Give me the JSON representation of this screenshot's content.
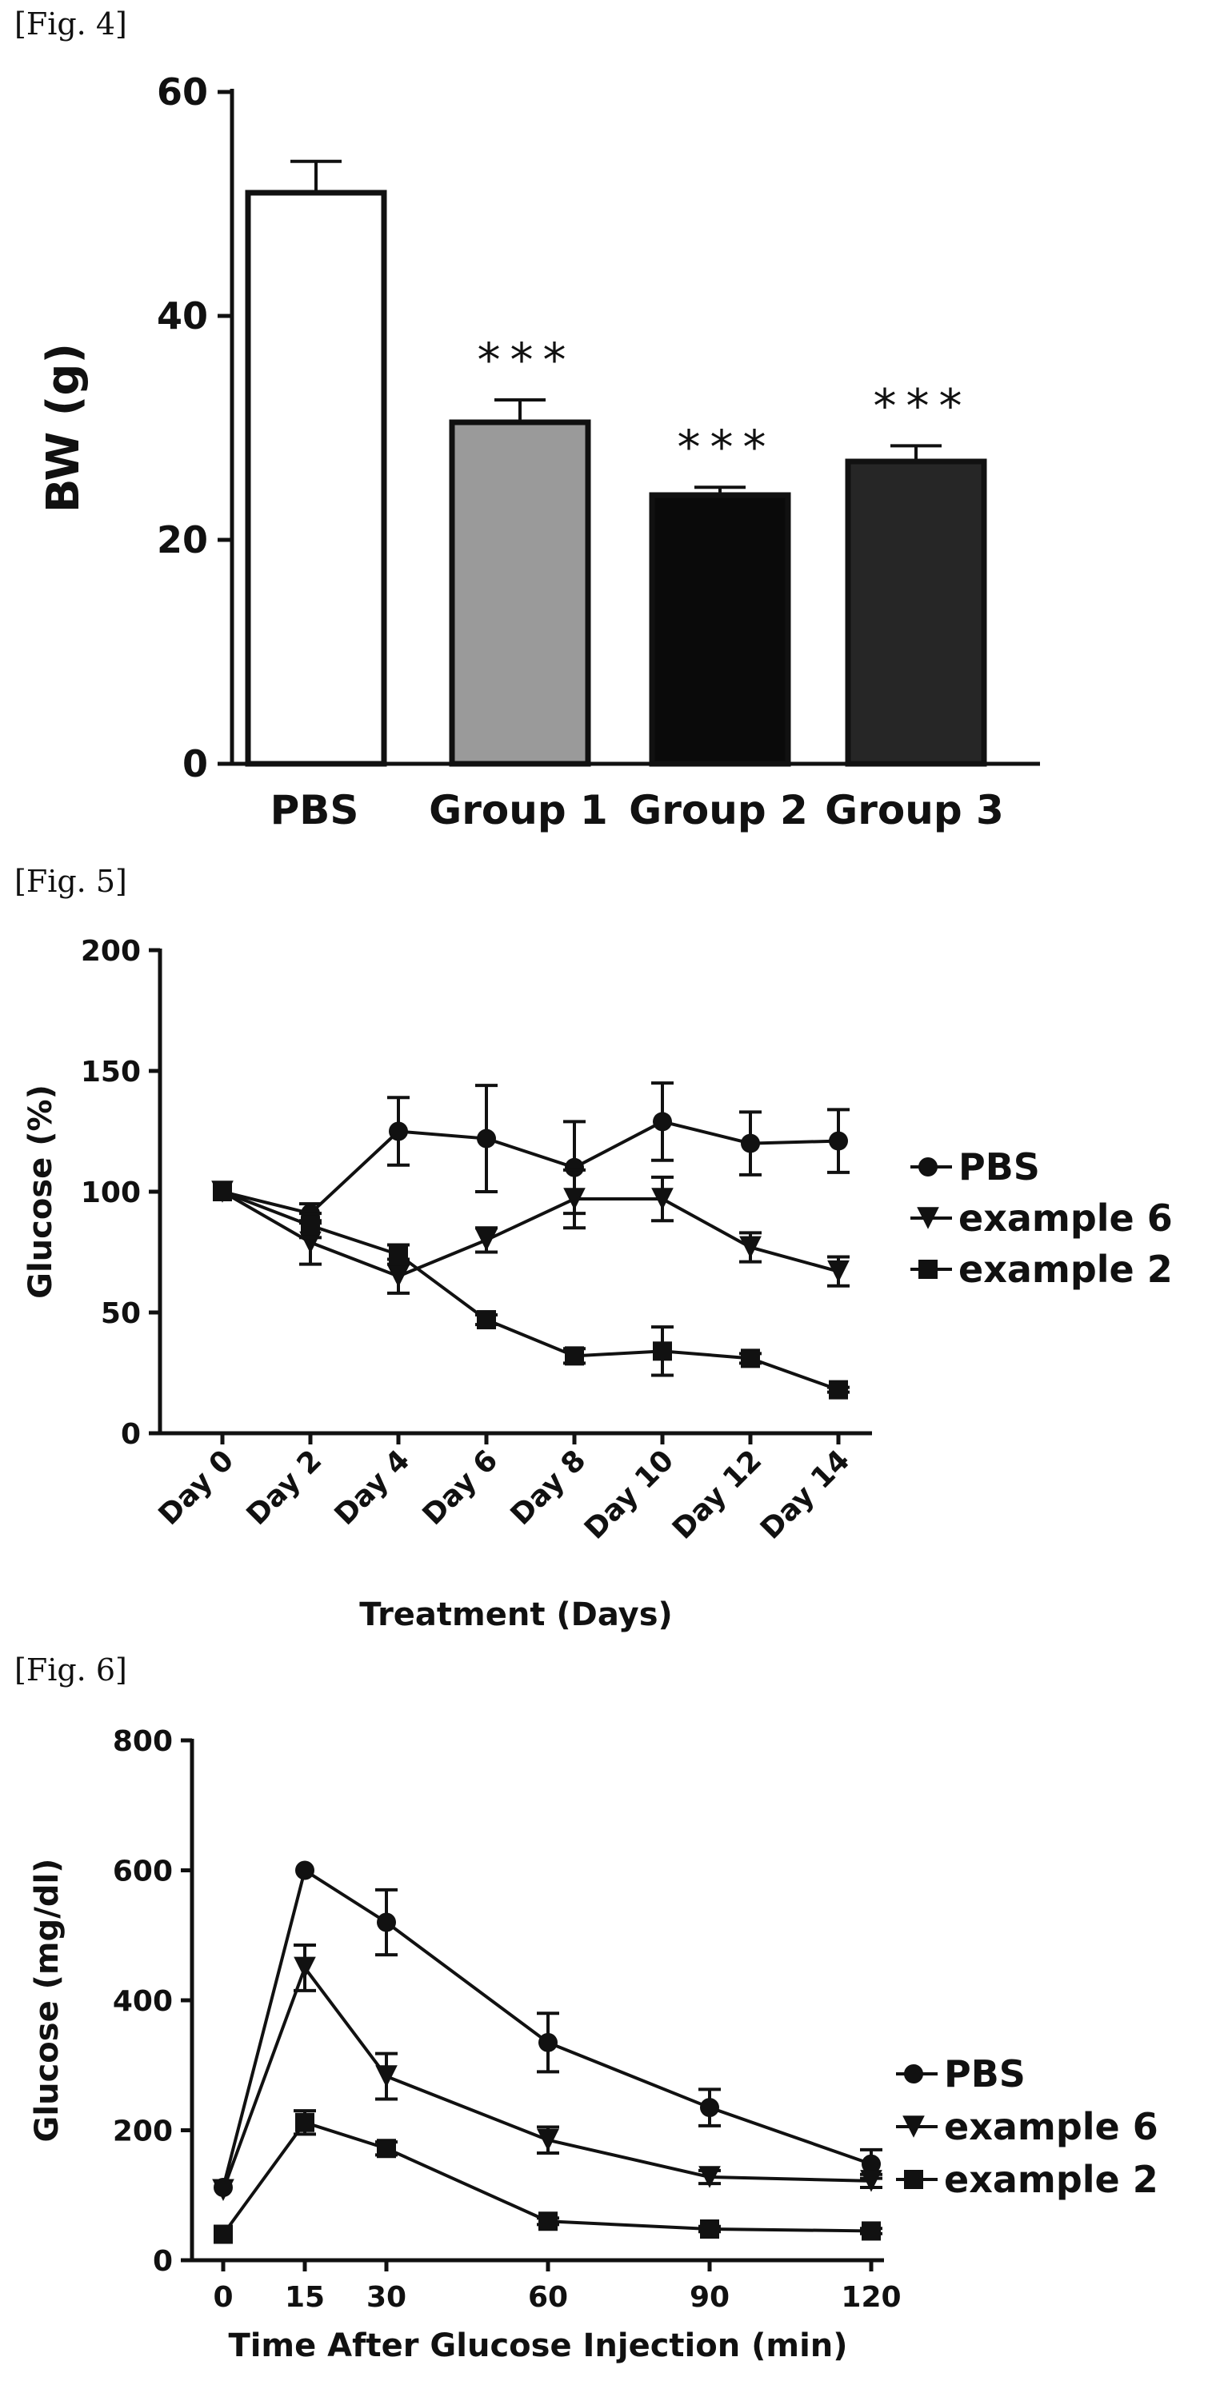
{
  "figures": {
    "fig4": "[Fig. 4]",
    "fig5": "[Fig. 5]",
    "fig6": "[Fig. 6]"
  },
  "chart_data": [
    {
      "type": "bar",
      "title": "",
      "xlabel": "",
      "ylabel": "BW (g)",
      "ylim": [
        0,
        60
      ],
      "yticks": [
        "0",
        "20",
        "40",
        "60"
      ],
      "categories": [
        "PBS",
        "Group 1",
        "Group 2",
        "Group 3"
      ],
      "values": [
        51,
        30.5,
        24,
        27
      ],
      "errors": [
        2.8,
        2.0,
        0.7,
        1.4
      ],
      "annotations": [
        "",
        "***",
        "***",
        "***"
      ],
      "fills": [
        "#ffffff",
        "#9a9a9a",
        "#0a0a0a",
        "#262626"
      ],
      "grid": false
    },
    {
      "type": "line",
      "title": "",
      "xlabel": "Treatment (Days)",
      "ylabel": "Glucose (%)",
      "ylim": [
        0,
        200
      ],
      "yticks": [
        "0",
        "50",
        "100",
        "150",
        "200"
      ],
      "categories": [
        "Day 0",
        "Day 2",
        "Day 4",
        "Day 6",
        "Day 8",
        "Day 10",
        "Day 12",
        "Day 14"
      ],
      "series": [
        {
          "name": "PBS",
          "marker": "circle",
          "values": [
            100,
            91,
            125,
            122,
            110,
            129,
            120,
            121
          ],
          "errors": [
            0,
            4,
            14,
            22,
            19,
            16,
            13,
            13
          ]
        },
        {
          "name": "example 6",
          "marker": "triangle-down",
          "values": [
            100,
            79,
            65,
            80,
            97,
            97,
            77,
            67
          ],
          "errors": [
            0,
            9,
            7,
            5,
            12,
            9,
            6,
            6
          ]
        },
        {
          "name": "example 2",
          "marker": "square",
          "values": [
            100,
            86,
            74,
            47,
            32,
            34,
            31,
            18
          ],
          "errors": [
            0,
            5,
            4,
            2,
            3,
            10,
            2,
            1
          ]
        }
      ],
      "legend": "right",
      "grid": false
    },
    {
      "type": "line",
      "title": "",
      "xlabel": "Time After Glucose Injection  (min)",
      "ylabel": "Glucose (mg/dl)",
      "ylim": [
        0,
        800
      ],
      "yticks": [
        "0",
        "200",
        "400",
        "600",
        "800"
      ],
      "x": [
        0,
        15,
        30,
        60,
        90,
        120
      ],
      "xticks": [
        "0",
        "15",
        "30",
        "60",
        "90",
        "120"
      ],
      "series": [
        {
          "name": "PBS",
          "marker": "circle",
          "values": [
            112,
            600,
            520,
            335,
            235,
            148
          ],
          "errors": [
            0,
            0,
            50,
            45,
            28,
            22
          ]
        },
        {
          "name": "example 6",
          "marker": "triangle-down",
          "values": [
            108,
            450,
            283,
            185,
            128,
            122
          ],
          "errors": [
            0,
            35,
            35,
            20,
            10,
            10
          ]
        },
        {
          "name": "example 2",
          "marker": "square",
          "values": [
            40,
            212,
            172,
            60,
            48,
            45
          ],
          "errors": [
            0,
            18,
            10,
            5,
            4,
            4
          ]
        }
      ],
      "legend": "right",
      "grid": false
    }
  ]
}
